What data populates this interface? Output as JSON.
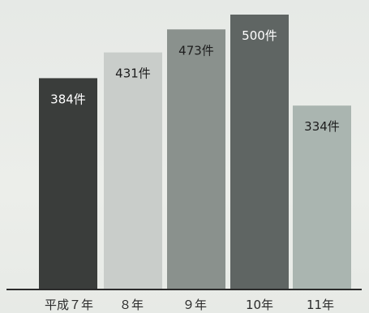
{
  "chart_data": {
    "type": "bar",
    "title": "",
    "xlabel": "",
    "ylabel": "",
    "categories": [
      "平成７年",
      "８年",
      "９年",
      "10年",
      "11年"
    ],
    "values": [
      384,
      431,
      473,
      500,
      334
    ],
    "value_labels": [
      "384件",
      "431件",
      "473件",
      "500件",
      "334件"
    ],
    "ylim": [
      0,
      520
    ],
    "grid": false,
    "legend": "none",
    "bar_colors": [
      "#3a3d3b",
      "#c9cdca",
      "#8a918d",
      "#5f6563",
      "#aab5b0"
    ],
    "label_colors": [
      "#ffffff",
      "#1e1e1e",
      "#1e1e1e",
      "#ffffff",
      "#1e1e1e"
    ],
    "baseline_color": "#2b2b2b"
  }
}
